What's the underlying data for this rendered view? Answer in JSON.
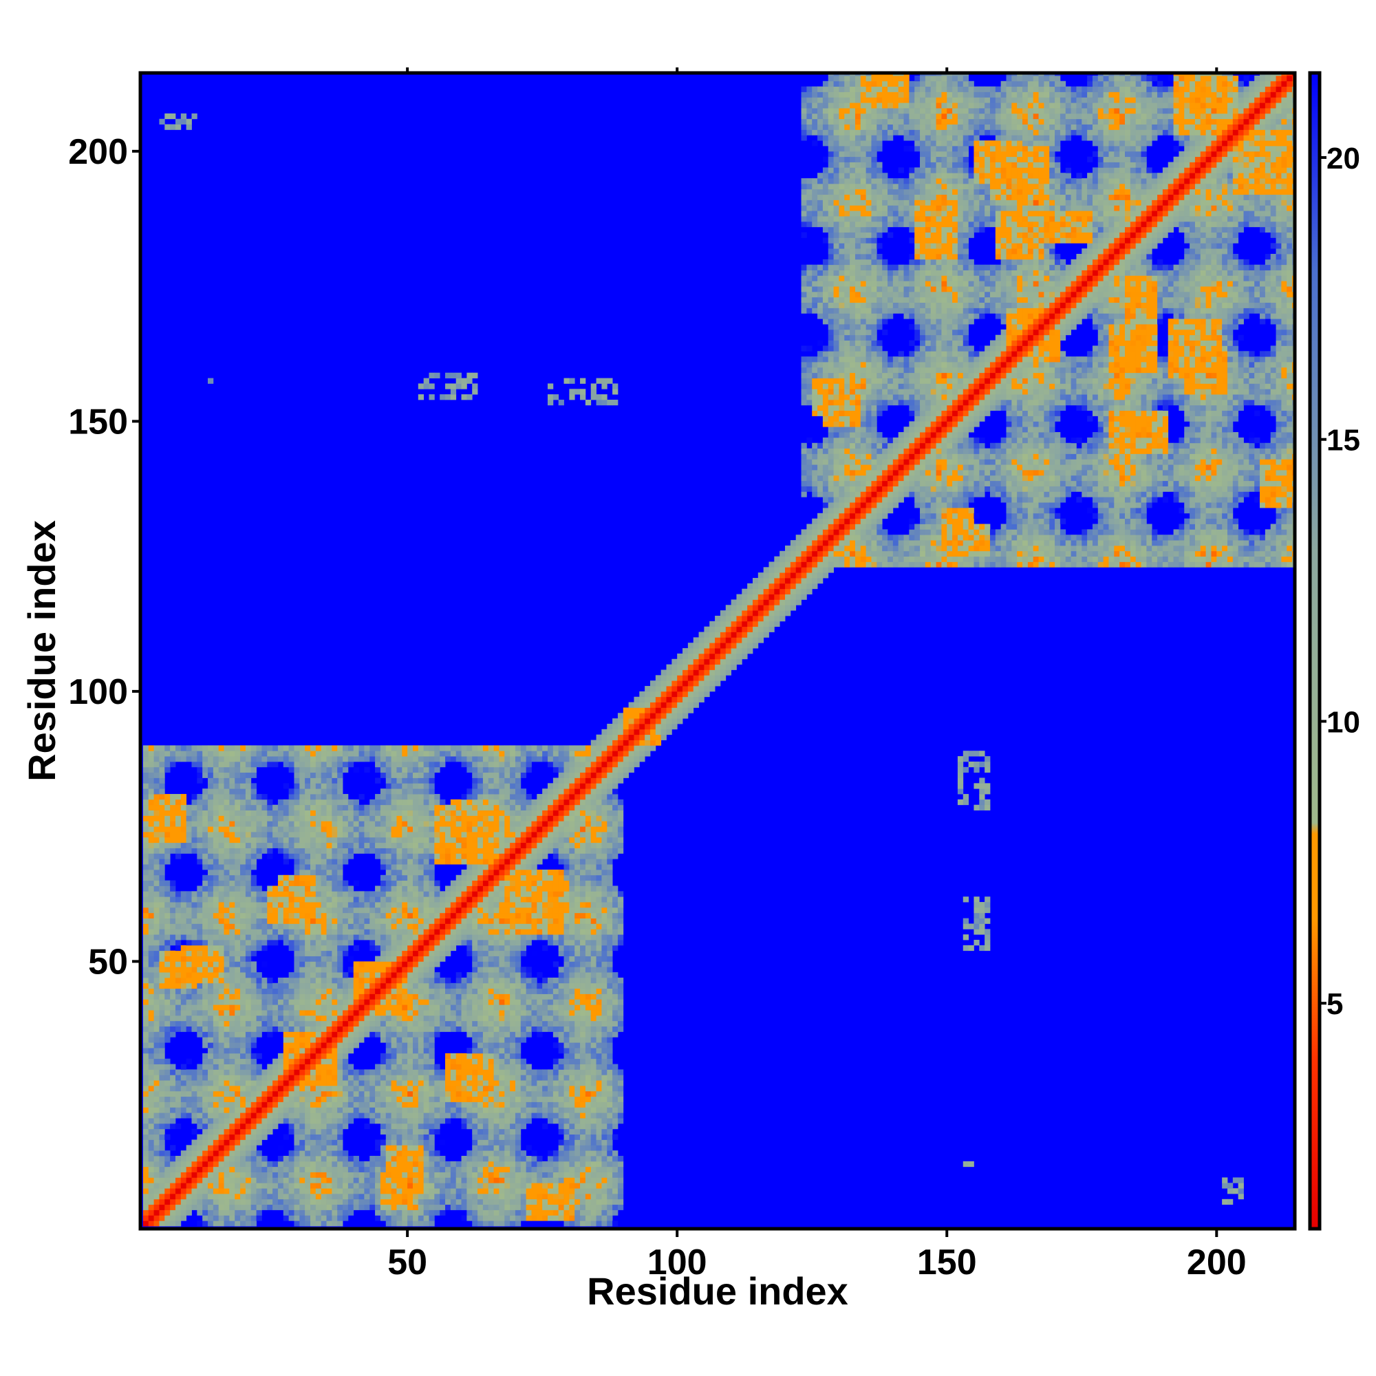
{
  "chart_data": {
    "type": "heatmap",
    "title": "",
    "xlabel": "Residue index",
    "ylabel": "Residue index",
    "xlim": [
      1,
      214
    ],
    "ylim": [
      1,
      214
    ],
    "x_ticks": [
      50,
      100,
      150,
      200
    ],
    "y_ticks": [
      50,
      100,
      150,
      200
    ],
    "n_residues": 214,
    "domains": [
      {
        "start": 1,
        "end": 89
      },
      {
        "start": 123,
        "end": 214
      }
    ],
    "linker_region": [
      89,
      123
    ],
    "diagonal_band": [
      [
        1,
        214
      ]
    ],
    "contact_bands": [
      {
        "x": [
          2,
          8
        ],
        "y": [
          72,
          80
        ]
      },
      {
        "x": [
          8,
          15
        ],
        "y": [
          46,
          52
        ]
      },
      {
        "x": [
          24,
          30
        ],
        "y": [
          57,
          63
        ]
      },
      {
        "x": [
          27,
          34
        ],
        "y": [
          28,
          36
        ]
      },
      {
        "x": [
          40,
          47
        ],
        "y": [
          40,
          49
        ]
      },
      {
        "x": [
          45,
          51
        ],
        "y": [
          4,
          10
        ]
      },
      {
        "x": [
          57,
          65
        ],
        "y": [
          26,
          32
        ]
      },
      {
        "x": [
          58,
          64
        ],
        "y": [
          71,
          79
        ]
      },
      {
        "x": [
          68,
          78
        ],
        "y": [
          55,
          66
        ]
      },
      {
        "x": [
          74,
          80
        ],
        "y": [
          2,
          6
        ]
      },
      {
        "x": [
          90,
          96
        ],
        "y": [
          91,
          96
        ]
      },
      {
        "x": [
          127,
          133
        ],
        "y": [
          149,
          154
        ]
      },
      {
        "x": [
          134,
          140
        ],
        "y": [
          208,
          213
        ]
      },
      {
        "x": [
          151,
          157
        ],
        "y": [
          125,
          130
        ]
      },
      {
        "x": [
          155,
          163
        ],
        "y": [
          194,
          201
        ]
      },
      {
        "x": [
          159,
          167
        ],
        "y": [
          180,
          188
        ]
      },
      {
        "x": [
          164,
          170
        ],
        "y": [
          161,
          168
        ]
      },
      {
        "x": [
          180,
          190
        ],
        "y": [
          144,
          151
        ]
      },
      {
        "x": [
          183,
          188
        ],
        "y": [
          166,
          176
        ]
      },
      {
        "x": [
          191,
          200
        ],
        "y": [
          158,
          168
        ]
      },
      {
        "x": [
          193,
          203
        ],
        "y": [
          204,
          213
        ]
      },
      {
        "x": [
          203,
          214
        ],
        "y": [
          192,
          200
        ]
      },
      {
        "x": [
          208,
          214
        ],
        "y": [
          136,
          142
        ]
      }
    ],
    "scattered_contacts": [
      {
        "x": [
          4,
          10
        ],
        "y": [
          204,
          206
        ]
      },
      {
        "x": [
          12,
          13
        ],
        "y": [
          157,
          158
        ]
      },
      {
        "x": [
          52,
          62
        ],
        "y": [
          154,
          158
        ]
      },
      {
        "x": [
          76,
          88
        ],
        "y": [
          153,
          157
        ]
      },
      {
        "x": [
          152,
          157
        ],
        "y": [
          78,
          88
        ]
      },
      {
        "x": [
          153,
          157
        ],
        "y": [
          52,
          61
        ]
      },
      {
        "x": [
          153,
          154
        ],
        "y": [
          11,
          12
        ]
      },
      {
        "x": [
          201,
          204
        ],
        "y": [
          5,
          9
        ]
      }
    ],
    "colorbar": {
      "ticks": [
        5,
        10,
        15,
        20
      ],
      "range": [
        1,
        21.5
      ],
      "colors": [
        {
          "value": 1,
          "color": "#e60000"
        },
        {
          "value": 4,
          "color": "#ff3300"
        },
        {
          "value": 6.5,
          "color": "#ff9900"
        },
        {
          "value": 8,
          "color": "#ff9900"
        },
        {
          "value": 8.2,
          "color": "#a0b98c"
        },
        {
          "value": 13,
          "color": "#8ca8a0"
        },
        {
          "value": 18,
          "color": "#4a6fd0"
        },
        {
          "value": 21.5,
          "color": "#0000ff"
        }
      ]
    },
    "background_color": "#0000ff",
    "grid": false,
    "legend": "colorbar-right"
  }
}
